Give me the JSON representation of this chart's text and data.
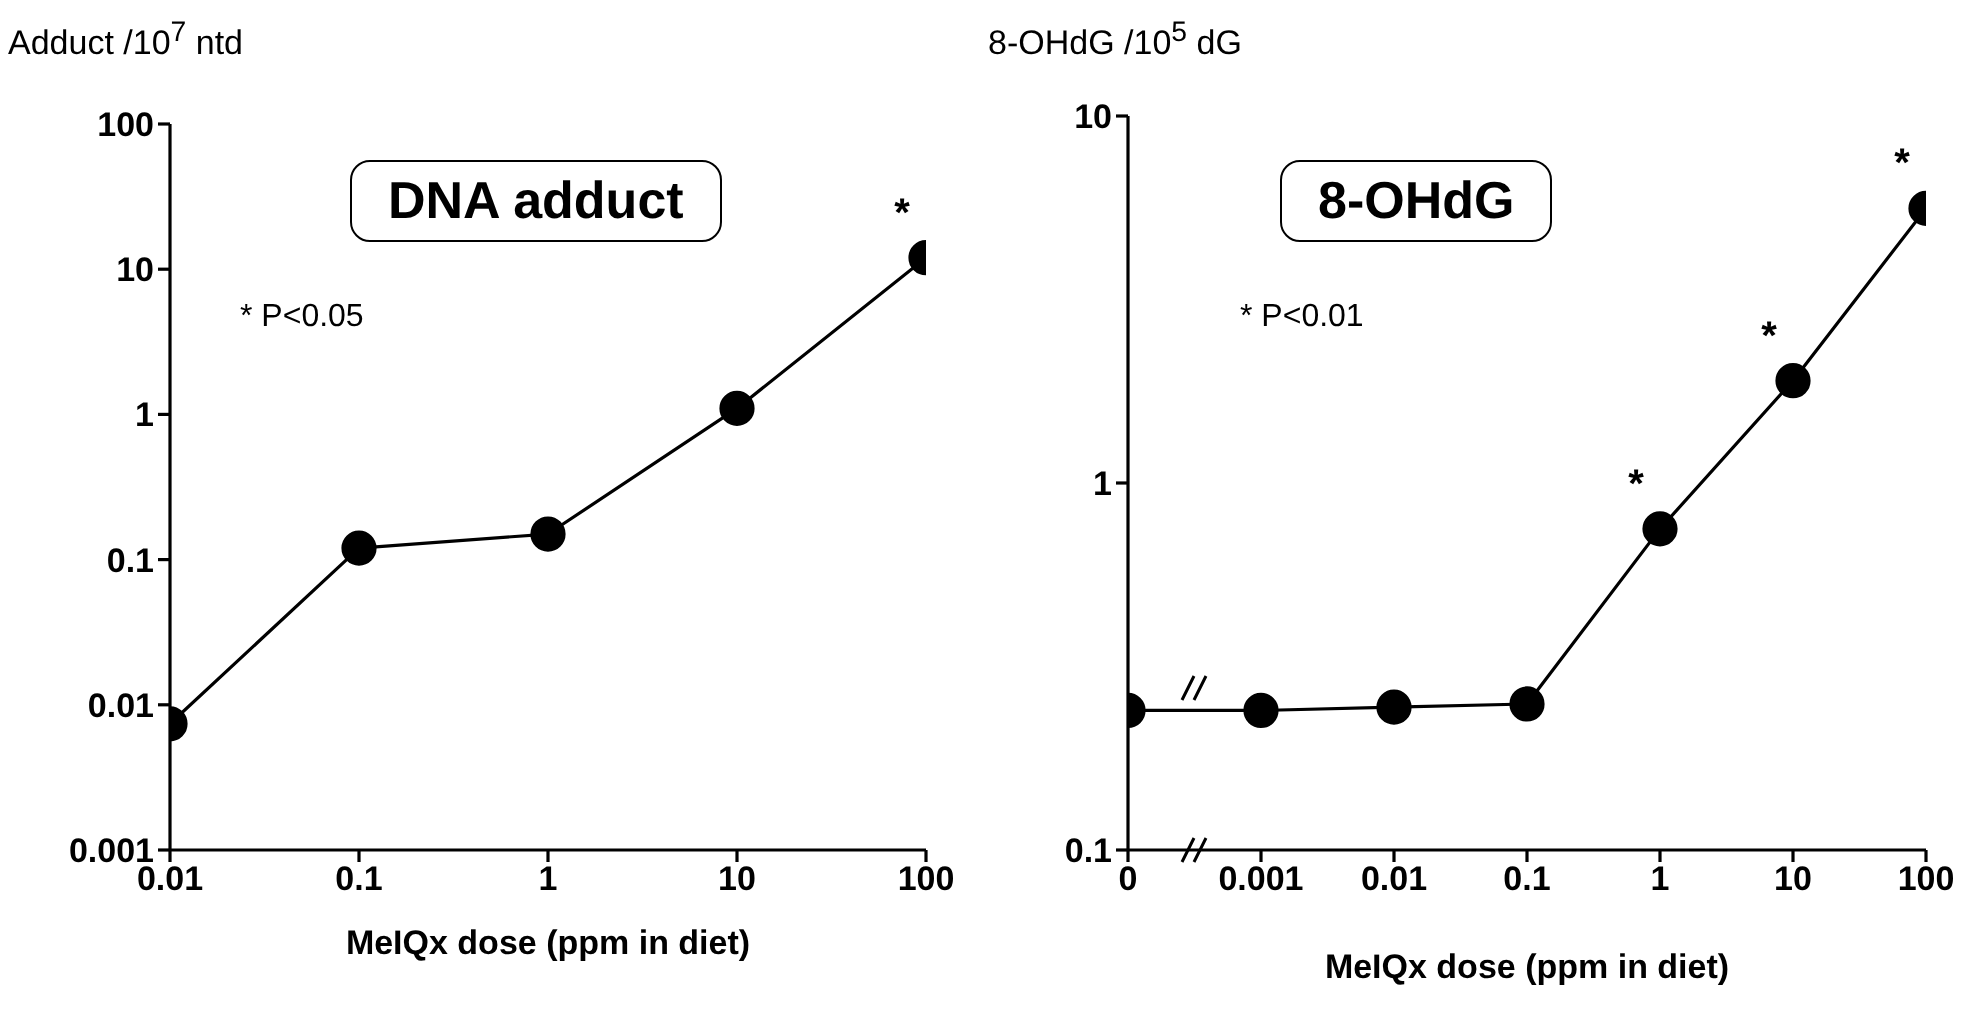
{
  "chart_data": [
    {
      "type": "line",
      "title": "DNA adduct",
      "ylabel": "Adduct /10$^{7}$ ntd",
      "xlabel": "MeIQx dose (ppm in diet)",
      "log": "xy",
      "marker": "circle",
      "x": [
        0.01,
        0.1,
        1,
        10,
        100
      ],
      "series": [
        {
          "color": "#000000",
          "values": [
            0.0074,
            0.12,
            0.15,
            1.1,
            12
          ]
        }
      ],
      "xlim": [
        0.01,
        100
      ],
      "xticks": [
        0.01,
        0.1,
        1,
        10,
        100
      ],
      "ylim": [
        0.001,
        100
      ],
      "yticks": [
        0.001,
        0.01,
        0.1,
        1,
        10,
        100
      ],
      "annotations": [
        "* P<0.05",
        {
          "text": "*",
          "x": 100,
          "y": 12
        }
      ]
    },
    {
      "type": "line",
      "title": "8-OHdG",
      "ylabel": "8-OHdG /10$^{5}$ dG",
      "xlabel": "MeIQx dose (ppm in diet)",
      "log": "y",
      "marker": "circle",
      "categories": [
        "0",
        "0.001",
        "0.01",
        "0.1",
        "1",
        "10",
        "100"
      ],
      "series": [
        {
          "color": "#000000",
          "values": [
            0.24,
            0.24,
            0.245,
            0.25,
            0.75,
            1.9,
            5.6
          ]
        }
      ],
      "ylim": [
        0.1,
        10
      ],
      "yticks": [
        0.1,
        1,
        10
      ],
      "annotations": [
        "* P<0.01",
        {
          "text": "*",
          "x": "1",
          "y": 0.75
        },
        {
          "text": "*",
          "x": "10",
          "y": 1.9
        },
        {
          "text": "*",
          "x": "100",
          "y": 5.6
        }
      ]
    }
  ]
}
